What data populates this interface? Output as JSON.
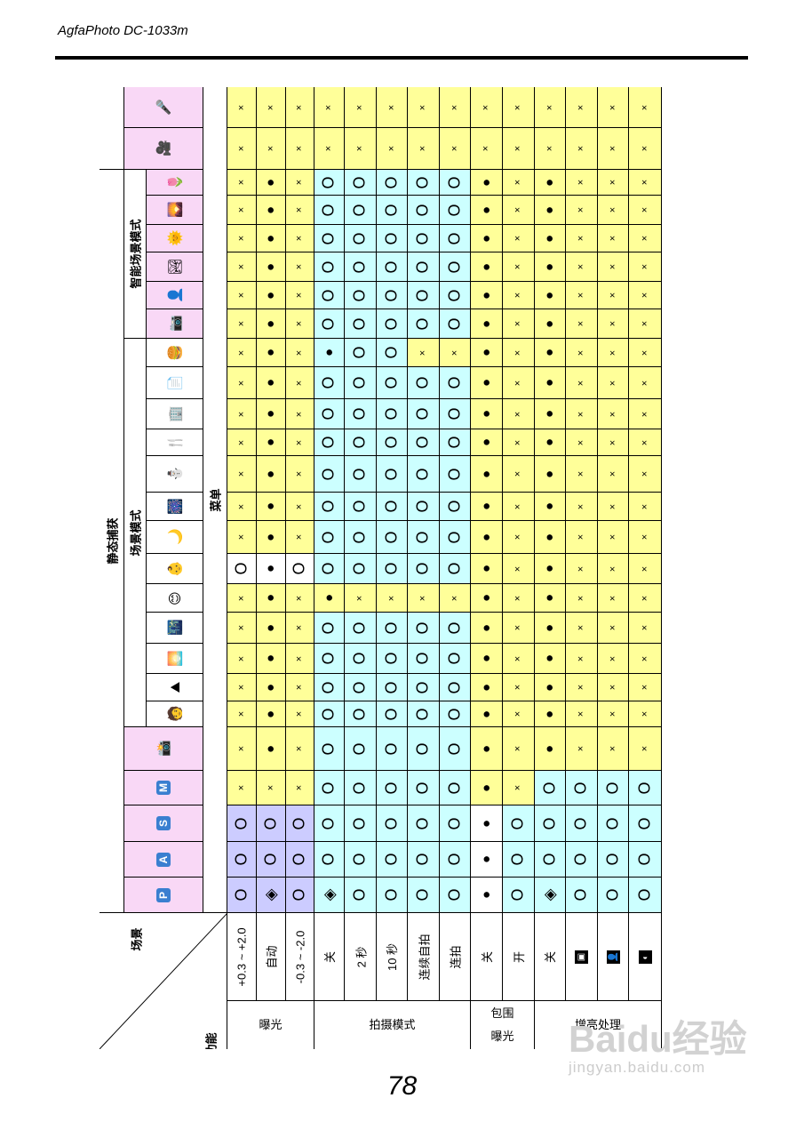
{
  "header": {
    "title": "AgfaPhoto DC-1033m"
  },
  "page_number": "78",
  "watermark": {
    "brand": "Baidu经验",
    "url": "jingyan.baidu.com"
  },
  "table": {
    "corner_scene": "场景",
    "corner_function": "功能",
    "menu_label": "菜单",
    "static_capture_label": "静态捕获",
    "scene_mode_label": "场景模式",
    "smart_scene_label": "智能场景模式",
    "columns": [
      {
        "id": "mic",
        "icon": "microphone-icon",
        "glyph": "🎤",
        "bg": "#f9d8f6"
      },
      {
        "id": "movie",
        "icon": "video-camera-icon",
        "glyph": "🎥",
        "bg": "#f9d8f6"
      },
      {
        "id": "s1",
        "icon": "smart-macro-flower-icon",
        "glyph": "🌷",
        "bg": "#f9d8f6"
      },
      {
        "id": "s2",
        "icon": "smart-landscape-icon",
        "glyph": "🌄",
        "bg": "#f9d8f6"
      },
      {
        "id": "s3",
        "icon": "smart-backlight-portrait-icon",
        "glyph": "🌞",
        "bg": "#f9d8f6"
      },
      {
        "id": "s4",
        "icon": "smart-night-landscape-icon",
        "glyph": "🏞",
        "bg": "#f9d8f6"
      },
      {
        "id": "s5",
        "icon": "smart-portrait-icon",
        "glyph": "👤",
        "bg": "#f9d8f6"
      },
      {
        "id": "s6",
        "icon": "smart-auto-icon",
        "glyph": "📷",
        "bg": "#f9d8f6"
      },
      {
        "id": "sc1",
        "icon": "food-icon",
        "glyph": "🍔",
        "bg": "#ffffff"
      },
      {
        "id": "sc2",
        "icon": "document-icon",
        "glyph": "📄",
        "bg": "#ffffff"
      },
      {
        "id": "sc3",
        "icon": "building-icon",
        "glyph": "🏢",
        "bg": "#ffffff"
      },
      {
        "id": "sc4",
        "icon": "party-icon",
        "glyph": "🍴",
        "bg": "#ffffff"
      },
      {
        "id": "sc5",
        "icon": "snow-icon",
        "glyph": "⛄",
        "bg": "#ffffff"
      },
      {
        "id": "sc6",
        "icon": "fireworks-icon",
        "glyph": "🎆",
        "bg": "#ffffff"
      },
      {
        "id": "sc7",
        "icon": "night-landscape-icon",
        "glyph": "🌙",
        "bg": "#ffffff"
      },
      {
        "id": "sc8",
        "icon": "baby-icon",
        "glyph": "👶",
        "bg": "#ffffff"
      },
      {
        "id": "sc9",
        "icon": "smile-icon",
        "glyph": "😊",
        "bg": "#ffffff"
      },
      {
        "id": "sc10",
        "icon": "night-portrait-icon",
        "glyph": "🌃",
        "bg": "#ffffff"
      },
      {
        "id": "sc11",
        "icon": "sunset-icon",
        "glyph": "🌅",
        "bg": "#ffffff"
      },
      {
        "id": "sc12",
        "icon": "landscape-icon",
        "glyph": "⛰",
        "bg": "#ffffff"
      },
      {
        "id": "sc13",
        "icon": "portrait-icon",
        "glyph": "🧑",
        "bg": "#ffffff"
      },
      {
        "id": "auto",
        "icon": "auto-camera-icon",
        "glyph": "📸",
        "bg": "#f9d8f6"
      },
      {
        "id": "m",
        "icon": "manual-mode-icon",
        "glyph": "M",
        "bg": "#f9d8f6"
      },
      {
        "id": "s",
        "icon": "shutter-priority-icon",
        "glyph": "S",
        "bg": "#f9d8f6"
      },
      {
        "id": "a",
        "icon": "aperture-priority-icon",
        "glyph": "A",
        "bg": "#f9d8f6"
      },
      {
        "id": "p",
        "icon": "program-mode-icon",
        "glyph": "P",
        "bg": "#f9d8f6"
      }
    ],
    "rows": [
      {
        "group": "曝光",
        "label": "+0.3 ~ +2.0",
        "icon": null
      },
      {
        "group": "曝光",
        "label": "自动",
        "icon": null
      },
      {
        "group": "曝光",
        "label": "-0.3 ~ -2.0",
        "icon": null
      },
      {
        "group": "拍摄模式",
        "label": "关",
        "icon": null
      },
      {
        "group": "拍摄模式",
        "label": "2 秒",
        "icon": null
      },
      {
        "group": "拍摄模式",
        "label": "10 秒",
        "icon": null
      },
      {
        "group": "拍摄模式",
        "label": "连续自拍",
        "icon": null
      },
      {
        "group": "拍摄模式",
        "label": "连拍",
        "icon": null
      },
      {
        "group": "包围曝光",
        "label": "关",
        "icon": null
      },
      {
        "group": "包围曝光",
        "label": "开",
        "icon": null
      },
      {
        "group": "增亮处理",
        "label": "关",
        "icon": null
      },
      {
        "group": "增亮处理",
        "label": "",
        "icon": "brighten-low-icon",
        "glyph": "▣"
      },
      {
        "group": "增亮处理",
        "label": "",
        "icon": "brighten-mid-icon",
        "glyph": "👤"
      },
      {
        "group": "增亮处理",
        "label": "",
        "icon": "brighten-high-icon",
        "glyph": "◐"
      }
    ],
    "groups": [
      {
        "name": "曝光",
        "count": 3
      },
      {
        "name": "拍摄模式",
        "count": 5
      },
      {
        "name": "包围曝光",
        "count": 2
      },
      {
        "name": "增亮处理",
        "count": 4
      }
    ],
    "symbols": {
      "x": "×",
      "dot": "●",
      "o": "O",
      "diamond": "◈"
    },
    "color_key": {
      "y": "#ffff99",
      "c": "#ccffff",
      "v": "#ccccff",
      "w": "#ffffff"
    },
    "grid": [
      {
        "cells": [
          "x",
          "x",
          "x",
          "x",
          "x",
          "x",
          "x",
          "x",
          "x",
          "x",
          "x",
          "x",
          "x",
          "x"
        ],
        "colors": "yyyyyyyyyyyyyy"
      },
      {
        "cells": [
          "x",
          "x",
          "x",
          "x",
          "x",
          "x",
          "x",
          "x",
          "x",
          "x",
          "x",
          "x",
          "x",
          "x"
        ],
        "colors": "yyyyyyyyyyyyyy"
      },
      {
        "cells": [
          "x",
          "dot",
          "x",
          "o",
          "o",
          "o",
          "o",
          "o",
          "dot",
          "x",
          "dot",
          "x",
          "x",
          "x"
        ],
        "colors": "yyycccccyyyyyy"
      },
      {
        "cells": [
          "x",
          "dot",
          "x",
          "o",
          "o",
          "o",
          "o",
          "o",
          "dot",
          "x",
          "dot",
          "x",
          "x",
          "x"
        ],
        "colors": "yyycccccyyyyyy"
      },
      {
        "cells": [
          "x",
          "dot",
          "x",
          "o",
          "o",
          "o",
          "o",
          "o",
          "dot",
          "x",
          "dot",
          "x",
          "x",
          "x"
        ],
        "colors": "yyycccccyyyyyy"
      },
      {
        "cells": [
          "x",
          "dot",
          "x",
          "o",
          "o",
          "o",
          "o",
          "o",
          "dot",
          "x",
          "dot",
          "x",
          "x",
          "x"
        ],
        "colors": "yyycccccyyyyyy"
      },
      {
        "cells": [
          "x",
          "dot",
          "x",
          "o",
          "o",
          "o",
          "o",
          "o",
          "dot",
          "x",
          "dot",
          "x",
          "x",
          "x"
        ],
        "colors": "yyycccccyyyyyy"
      },
      {
        "cells": [
          "x",
          "dot",
          "x",
          "o",
          "o",
          "o",
          "o",
          "o",
          "dot",
          "x",
          "dot",
          "x",
          "x",
          "x"
        ],
        "colors": "yyycccccyyyyyy"
      },
      {
        "cells": [
          "x",
          "dot",
          "x",
          "dot",
          "o",
          "o",
          "x",
          "x",
          "dot",
          "x",
          "dot",
          "x",
          "x",
          "x"
        ],
        "colors": "yyycccyyyyyyyy"
      },
      {
        "cells": [
          "x",
          "dot",
          "x",
          "o",
          "o",
          "o",
          "o",
          "o",
          "dot",
          "x",
          "dot",
          "x",
          "x",
          "x"
        ],
        "colors": "yyycccccyyyyyy"
      },
      {
        "cells": [
          "x",
          "dot",
          "x",
          "o",
          "o",
          "o",
          "o",
          "o",
          "dot",
          "x",
          "dot",
          "x",
          "x",
          "x"
        ],
        "colors": "yyycccccyyyyyy"
      },
      {
        "cells": [
          "x",
          "dot",
          "x",
          "o",
          "o",
          "o",
          "o",
          "o",
          "dot",
          "x",
          "dot",
          "x",
          "x",
          "x"
        ],
        "colors": "yyycccccyyyyyy"
      },
      {
        "cells": [
          "x",
          "dot",
          "x",
          "o",
          "o",
          "o",
          "o",
          "o",
          "dot",
          "x",
          "dot",
          "x",
          "x",
          "x"
        ],
        "colors": "yyycccccyyyyyy"
      },
      {
        "cells": [
          "x",
          "dot",
          "x",
          "o",
          "o",
          "o",
          "o",
          "o",
          "dot",
          "x",
          "dot",
          "x",
          "x",
          "x"
        ],
        "colors": "yyycccccyyyyyy"
      },
      {
        "cells": [
          "x",
          "dot",
          "x",
          "o",
          "o",
          "o",
          "o",
          "o",
          "dot",
          "x",
          "dot",
          "x",
          "x",
          "x"
        ],
        "colors": "yyycccccyyyyyy"
      },
      {
        "cells": [
          "o",
          "dot",
          "o",
          "o",
          "o",
          "o",
          "o",
          "o",
          "dot",
          "x",
          "dot",
          "x",
          "x",
          "x"
        ],
        "colors": "wwwcccccyyyyyy"
      },
      {
        "cells": [
          "x",
          "dot",
          "x",
          "dot",
          "x",
          "x",
          "x",
          "x",
          "dot",
          "x",
          "dot",
          "x",
          "x",
          "x"
        ],
        "colors": "yyyyyyyyyyyyyy"
      },
      {
        "cells": [
          "x",
          "dot",
          "x",
          "o",
          "o",
          "o",
          "o",
          "o",
          "dot",
          "x",
          "dot",
          "x",
          "x",
          "x"
        ],
        "colors": "yyycccccyyyyyy"
      },
      {
        "cells": [
          "x",
          "dot",
          "x",
          "o",
          "o",
          "o",
          "o",
          "o",
          "dot",
          "x",
          "dot",
          "x",
          "x",
          "x"
        ],
        "colors": "yyycccccyyyyyy"
      },
      {
        "cells": [
          "x",
          "dot",
          "x",
          "o",
          "o",
          "o",
          "o",
          "o",
          "dot",
          "x",
          "dot",
          "x",
          "x",
          "x"
        ],
        "colors": "yyycccccyyyyyy"
      },
      {
        "cells": [
          "x",
          "dot",
          "x",
          "o",
          "o",
          "o",
          "o",
          "o",
          "dot",
          "x",
          "dot",
          "x",
          "x",
          "x"
        ],
        "colors": "yyycccccyyyyyy"
      },
      {
        "cells": [
          "x",
          "dot",
          "x",
          "o",
          "o",
          "o",
          "o",
          "o",
          "dot",
          "x",
          "dot",
          "x",
          "x",
          "x"
        ],
        "colors": "yyycccccyyyyyy"
      },
      {
        "cells": [
          "x",
          "x",
          "x",
          "o",
          "o",
          "o",
          "o",
          "o",
          "dot",
          "x",
          "o",
          "o",
          "o",
          "o"
        ],
        "colors": "yyycccccyycccc"
      },
      {
        "cells": [
          "o",
          "o",
          "o",
          "o",
          "o",
          "o",
          "o",
          "o",
          "dot",
          "o",
          "o",
          "o",
          "o",
          "o"
        ],
        "colors": "vvvcccccwccccc"
      },
      {
        "cells": [
          "o",
          "o",
          "o",
          "o",
          "o",
          "o",
          "o",
          "o",
          "dot",
          "o",
          "o",
          "o",
          "o",
          "o"
        ],
        "colors": "vvvcccccwccccc"
      },
      {
        "cells": [
          "o",
          "diamond",
          "o",
          "diamond",
          "o",
          "o",
          "o",
          "o",
          "dot",
          "o",
          "diamond",
          "o",
          "o",
          "o"
        ],
        "colors": "vvvcccccwccccc"
      }
    ]
  }
}
